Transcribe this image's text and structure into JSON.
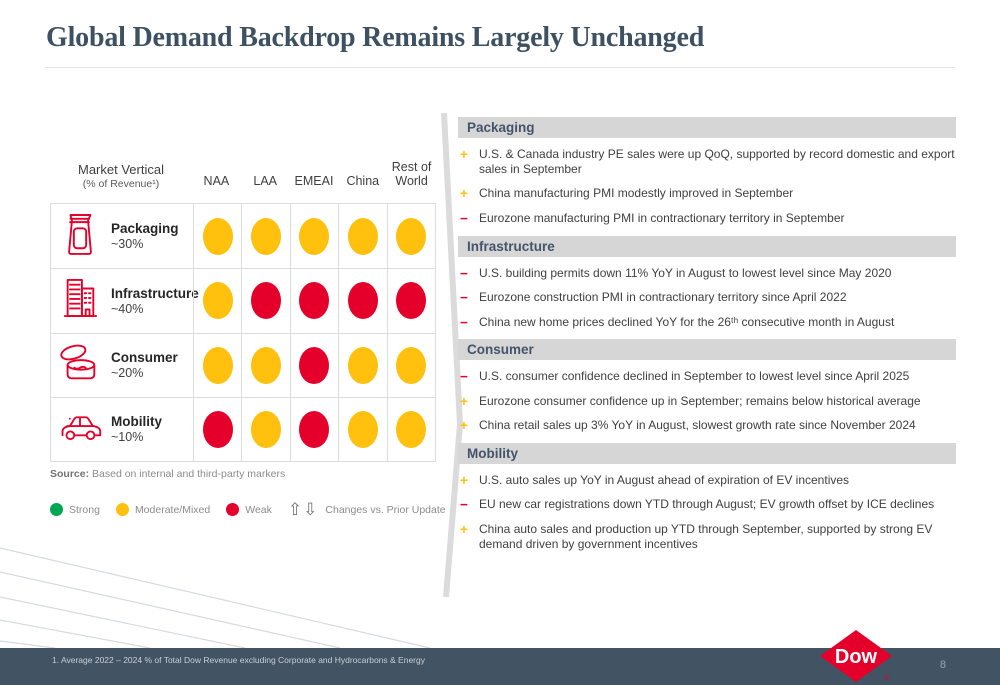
{
  "slide": {
    "title": "Global Demand Backdrop Remains Largely Unchanged",
    "page_number": "8",
    "footnote": "1.  Average 2022 – 2024 % of Total Dow Revenue excluding Corporate and Hydrocarbons & Energy",
    "logo_text": "Dow",
    "accent_colors": {
      "brand_red": "#E4002B",
      "slate": "#44546A",
      "footer_band": "#425363",
      "header_bar_gray": "#D6D6D6"
    }
  },
  "signs": {
    "plus": "+",
    "minus": "−"
  },
  "matrix": {
    "header": {
      "col1_line1": "Market Vertical",
      "col1_line2": "(% of Revenue¹)",
      "regions": [
        "NAA",
        "LAA",
        "EMEAI",
        "China",
        "Rest of World"
      ]
    },
    "rows": [
      {
        "name": "Packaging",
        "revenue": "~30%",
        "icon": "pouch-icon",
        "ratings": [
          "moderate",
          "moderate",
          "moderate",
          "moderate",
          "moderate"
        ]
      },
      {
        "name": "Infrastructure",
        "revenue": "~40%",
        "icon": "building-icon",
        "ratings": [
          "moderate",
          "weak",
          "weak",
          "weak",
          "weak"
        ]
      },
      {
        "name": "Consumer",
        "revenue": "~20%",
        "icon": "jar-icon",
        "ratings": [
          "moderate",
          "moderate",
          "weak",
          "moderate",
          "moderate"
        ]
      },
      {
        "name": "Mobility",
        "revenue": "~10%",
        "icon": "car-icon",
        "ratings": [
          "weak",
          "moderate",
          "weak",
          "moderate",
          "moderate"
        ]
      }
    ],
    "colors": {
      "strong": "#00A651",
      "moderate": "#FFC10E",
      "weak": "#E4002B"
    },
    "source_label": "Source:",
    "source_text": " Based on internal and third-party markers",
    "legend": {
      "strong_label": "Strong",
      "moderate_label": "Moderate/Mixed",
      "weak_label": "Weak",
      "up_arrow": "⇧",
      "down_arrow": "⇩",
      "changes_label": "Changes vs. Prior Update"
    }
  },
  "sections": [
    {
      "title": "Packaging",
      "bullets": [
        {
          "sign": "plus",
          "text": "U.S. & Canada industry PE sales were up QoQ, supported by record domestic and export sales in September"
        },
        {
          "sign": "plus",
          "text": "China manufacturing PMI modestly improved in September"
        },
        {
          "sign": "minus",
          "text": "Eurozone manufacturing PMI in contractionary territory in September"
        }
      ]
    },
    {
      "title": "Infrastructure",
      "bullets": [
        {
          "sign": "minus",
          "text": "U.S. building permits down 11% YoY in August to lowest level since May 2020"
        },
        {
          "sign": "minus",
          "text": "Eurozone construction PMI in contractionary territory since April 2022"
        },
        {
          "sign": "minus",
          "text": "China new home prices declined YoY for the 26ᵗʰ consecutive month in August"
        }
      ]
    },
    {
      "title": "Consumer",
      "bullets": [
        {
          "sign": "minus",
          "text": "U.S. consumer confidence declined in September to lowest level since April 2025"
        },
        {
          "sign": "plus",
          "text": "Eurozone consumer confidence up in September; remains below historical average"
        },
        {
          "sign": "plus",
          "text": "China retail sales up 3% YoY in August, slowest growth rate since November 2024"
        }
      ]
    },
    {
      "title": "Mobility",
      "bullets": [
        {
          "sign": "plus",
          "text": "U.S. auto sales up YoY in August ahead of expiration of EV incentives"
        },
        {
          "sign": "minus",
          "text": "EU new car registrations down YTD through August; EV growth offset by ICE declines"
        },
        {
          "sign": "plus",
          "text": "China auto sales and production up YTD through September, supported by strong EV demand driven by government incentives"
        }
      ]
    }
  ]
}
